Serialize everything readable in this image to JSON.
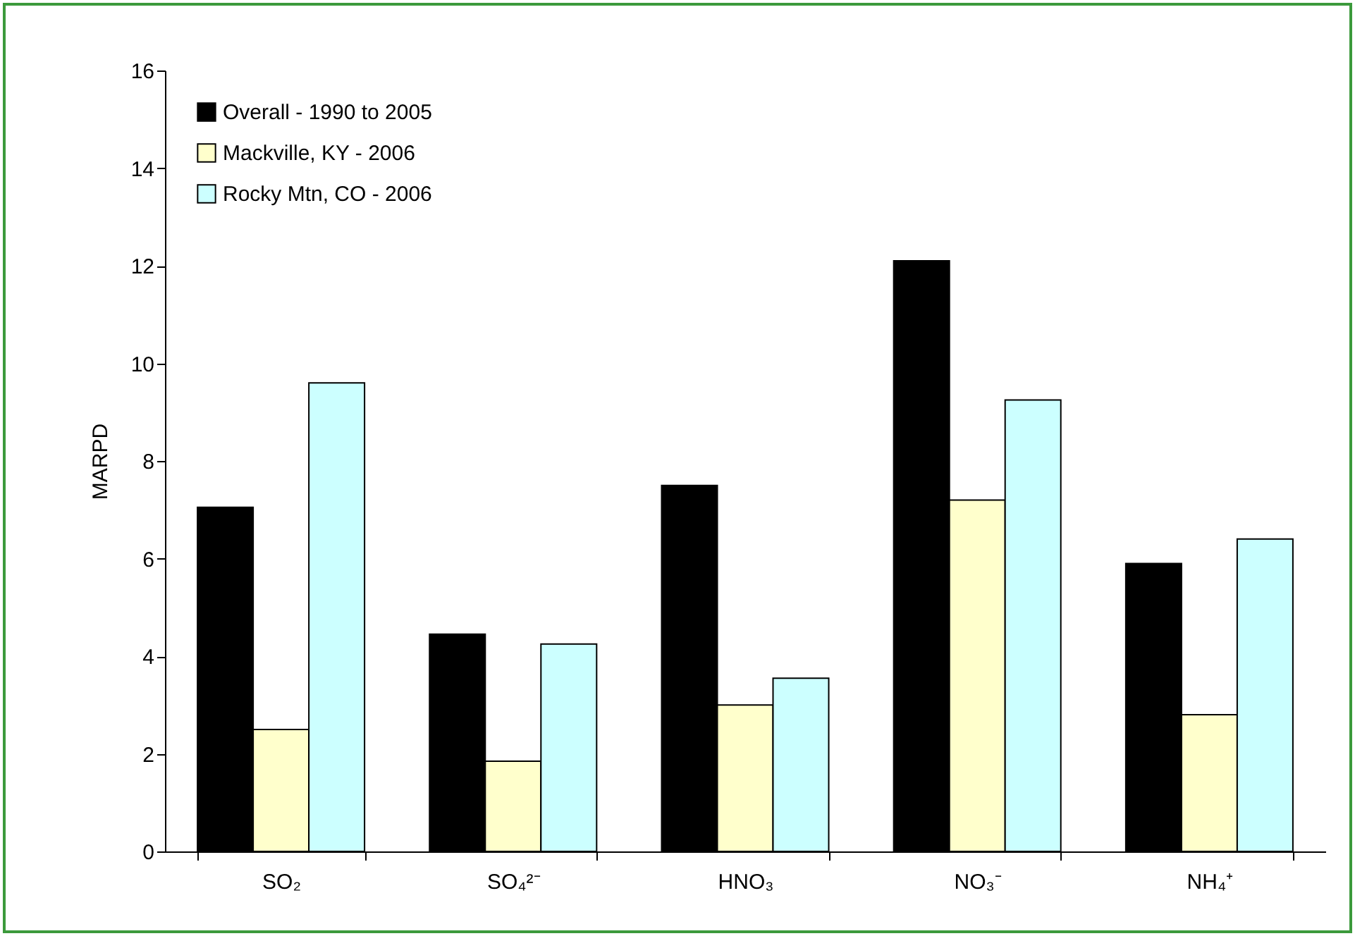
{
  "chart_data": {
    "type": "bar",
    "ylabel": "MARPD",
    "categories": [
      "SO₂",
      "SO₄²⁻",
      "HNO₃",
      "NO₃⁻",
      "NH₄⁺"
    ],
    "series": [
      {
        "name": "Overall - 1990 to 2005",
        "color": "#000000",
        "values": [
          7.05,
          4.45,
          7.5,
          12.1,
          5.9
        ]
      },
      {
        "name": "Mackville, KY - 2006",
        "color": "#ffffcc",
        "values": [
          2.5,
          1.85,
          3.0,
          7.2,
          2.8
        ]
      },
      {
        "name": "Rocky Mtn, CO - 2006",
        "color": "#ccffff",
        "values": [
          9.6,
          4.25,
          3.55,
          9.25,
          6.4
        ]
      }
    ],
    "ylim": [
      0,
      16
    ],
    "yticks": [
      0,
      2,
      4,
      6,
      8,
      10,
      12,
      14,
      16
    ],
    "grid": false,
    "legend": "top left"
  }
}
